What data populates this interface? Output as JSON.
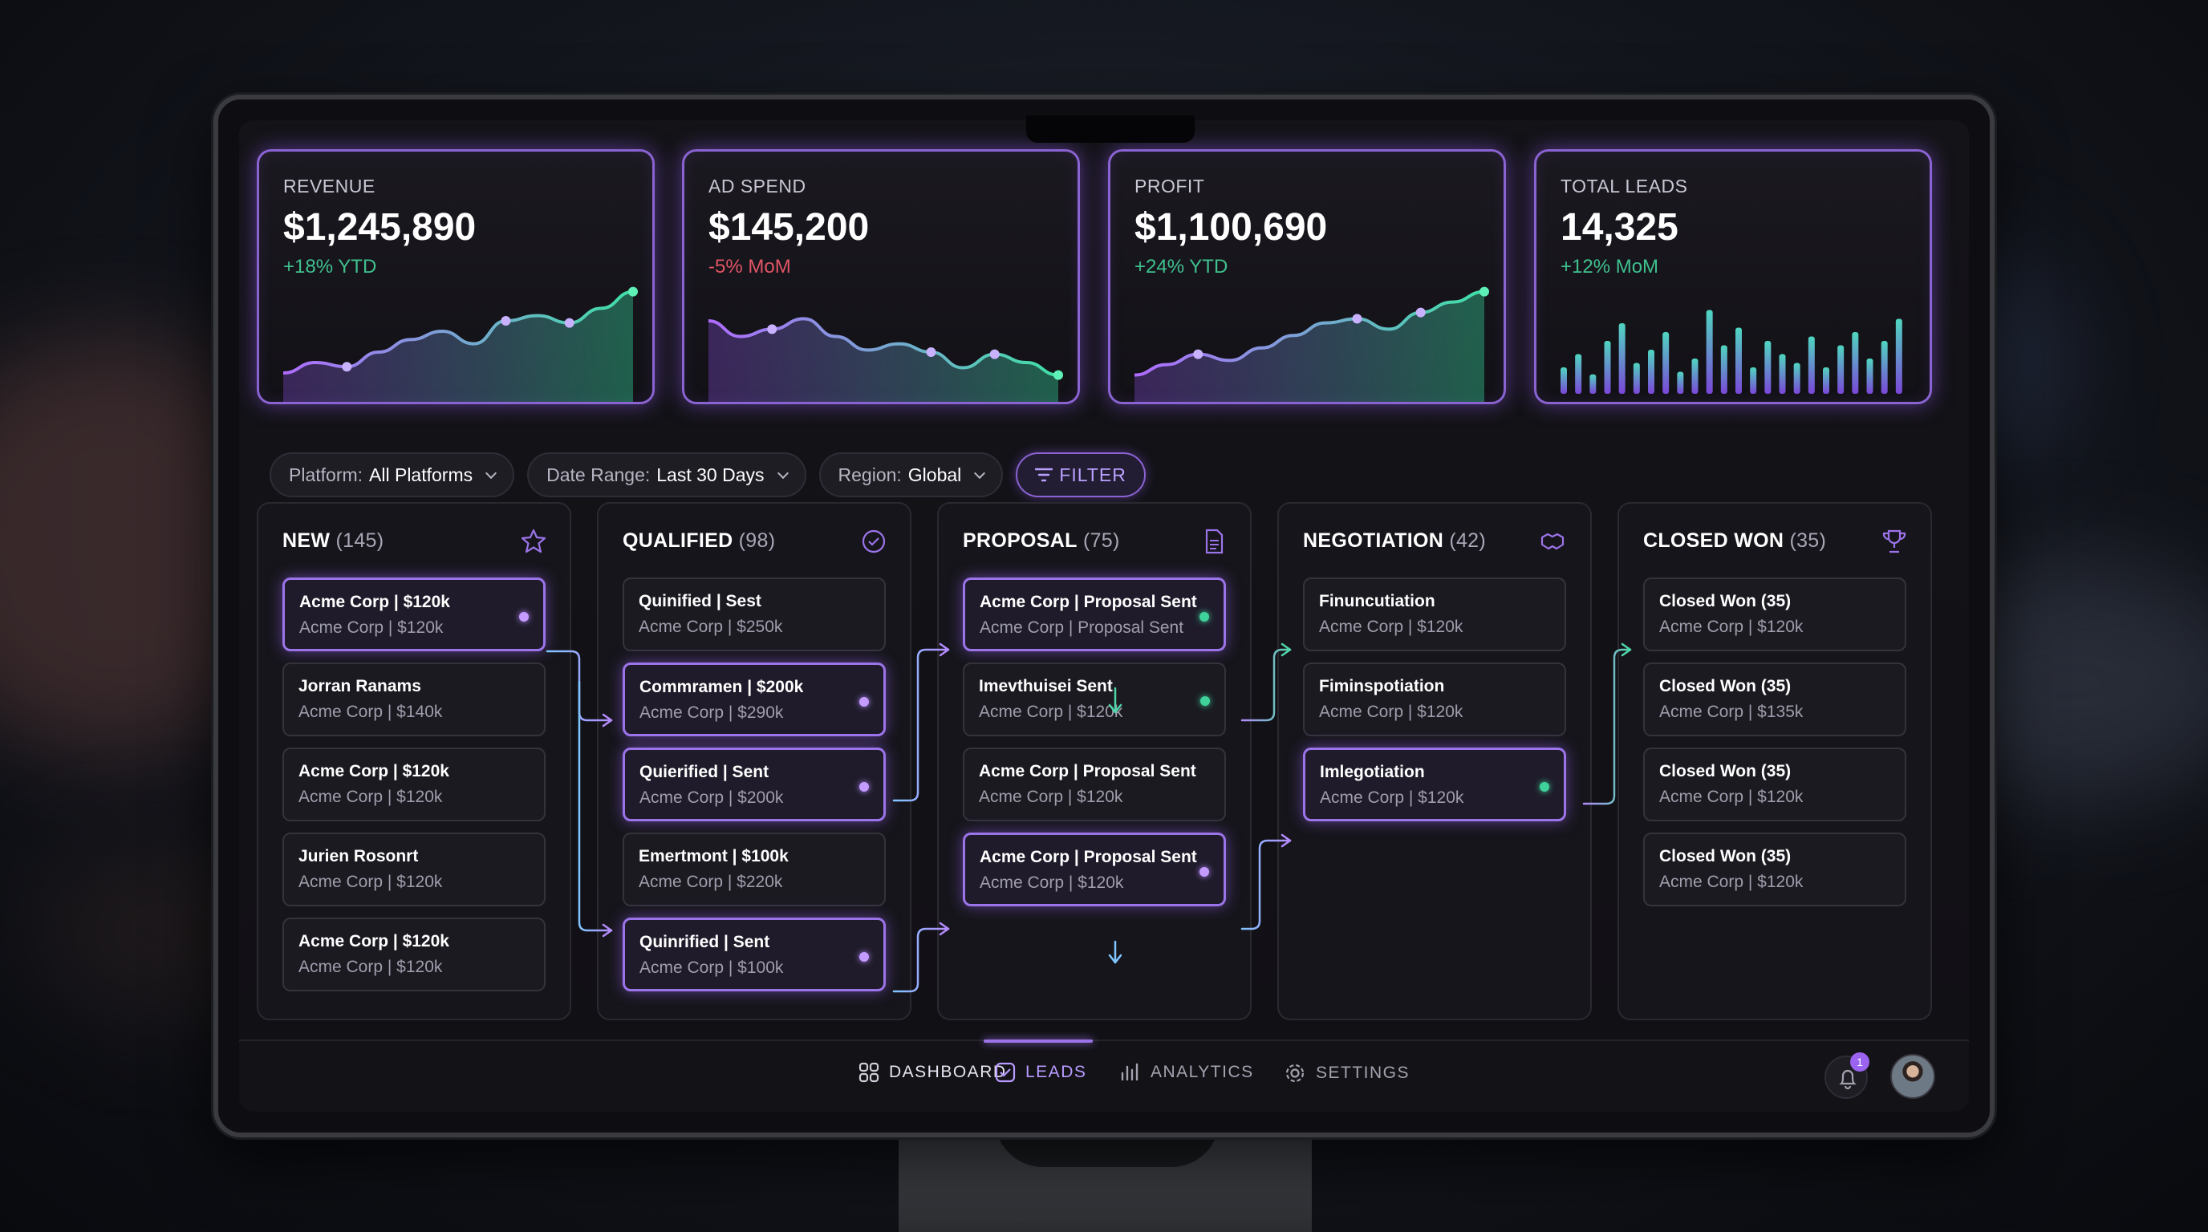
{
  "kpis": [
    {
      "label": "REVENUE",
      "value": "$1,245,890",
      "delta": "+18% YTD",
      "trend": "up",
      "sparkline": [
        20,
        30,
        26,
        40,
        52,
        60,
        48,
        70,
        75,
        68,
        82,
        98
      ]
    },
    {
      "label": "AD SPEND",
      "value": "$145,200",
      "delta": "-5% MoM",
      "trend": "down",
      "sparkline": [
        70,
        55,
        62,
        72,
        55,
        42,
        48,
        40,
        25,
        38,
        30,
        18
      ]
    },
    {
      "label": "PROFIT",
      "value": "$1,100,690",
      "delta": "+24% YTD",
      "trend": "up",
      "sparkline": [
        18,
        28,
        38,
        32,
        44,
        56,
        68,
        72,
        62,
        78,
        88,
        98
      ]
    },
    {
      "label": "TOTAL LEADS",
      "value": "14,325",
      "delta": "+12% MoM",
      "trend": "up",
      "bars": [
        30,
        45,
        22,
        60,
        80,
        35,
        50,
        70,
        25,
        40,
        95,
        55,
        75,
        30,
        60,
        45,
        35,
        65,
        30,
        55,
        70,
        40,
        60,
        85
      ]
    }
  ],
  "filters": {
    "platform_label": "Platform:",
    "platform_value": "All Platforms",
    "date_label": "Date Range:",
    "date_value": "Last 30 Days",
    "region_label": "Region:",
    "region_value": "Global",
    "filter_button": "FILTER"
  },
  "columns": [
    {
      "title": "NEW",
      "count": "(145)",
      "icon": "star-icon",
      "cards": [
        {
          "title": "Acme Corp | $120k",
          "subtitle": "Acme Corp | $120k",
          "highlight": true,
          "dot": "purple"
        },
        {
          "title": "Jorran Ranams",
          "subtitle": "Acme Corp | $140k",
          "highlight": false,
          "dot": ""
        },
        {
          "title": "Acme Corp | $120k",
          "subtitle": "Acme Corp | $120k",
          "highlight": false,
          "dot": ""
        },
        {
          "title": "Jurien Rosonrt",
          "subtitle": "Acme Corp | $120k",
          "highlight": false,
          "dot": ""
        },
        {
          "title": "Acme Corp | $120k",
          "subtitle": "Acme Corp | $120k",
          "highlight": false,
          "dot": ""
        }
      ]
    },
    {
      "title": "QUALIFIED",
      "count": "(98)",
      "icon": "check-circle-icon",
      "cards": [
        {
          "title": "Quinified | Sest",
          "subtitle": "Acme Corp | $250k",
          "highlight": false,
          "dot": ""
        },
        {
          "title": "Commramen | $200k",
          "subtitle": "Acme Corp | $290k",
          "highlight": true,
          "dot": "purple"
        },
        {
          "title": "Quierified | Sent",
          "subtitle": "Acme Corp | $200k",
          "highlight": true,
          "dot": "purple"
        },
        {
          "title": "Emertmont | $100k",
          "subtitle": "Acme Corp | $220k",
          "highlight": false,
          "dot": ""
        },
        {
          "title": "Quinrified | Sent",
          "subtitle": "Acme Corp | $100k",
          "highlight": true,
          "dot": "purple"
        }
      ]
    },
    {
      "title": "PROPOSAL",
      "count": "(75)",
      "icon": "document-icon",
      "cards": [
        {
          "title": "Acme Corp | Proposal Sent",
          "subtitle": "Acme Corp | Proposal Sent",
          "highlight": true,
          "dot": "green"
        },
        {
          "title": "Imevthuisei Sent",
          "subtitle": "Acme Corp | $120k",
          "highlight": false,
          "dot": "green"
        },
        {
          "title": "Acme Corp | Proposal Sent",
          "subtitle": "Acme Corp | $120k",
          "highlight": false,
          "dot": ""
        },
        {
          "title": "Acme Corp | Proposal Sent",
          "subtitle": "Acme Corp | $120k",
          "highlight": true,
          "dot": "purple"
        }
      ]
    },
    {
      "title": "NEGOTIATION",
      "count": "(42)",
      "icon": "handshake-icon",
      "cards": [
        {
          "title": "Finuncutiation",
          "subtitle": "Acme Corp | $120k",
          "highlight": false,
          "dot": ""
        },
        {
          "title": "Fiminspotiation",
          "subtitle": "Acme Corp | $120k",
          "highlight": false,
          "dot": ""
        },
        {
          "title": "Imlegotiation",
          "subtitle": "Acme Corp | $120k",
          "highlight": true,
          "dot": "green"
        }
      ]
    },
    {
      "title": "CLOSED WON",
      "count": "(35)",
      "icon": "trophy-icon",
      "cards": [
        {
          "title": "Closed Won (35)",
          "subtitle": "Acme Corp | $120k",
          "highlight": false,
          "dot": ""
        },
        {
          "title": "Closed Won (35)",
          "subtitle": "Acme Corp | $135k",
          "highlight": false,
          "dot": ""
        },
        {
          "title": "Closed Won (35)",
          "subtitle": "Acme Corp | $120k",
          "highlight": false,
          "dot": ""
        },
        {
          "title": "Closed Won (35)",
          "subtitle": "Acme Corp | $120k",
          "highlight": false,
          "dot": ""
        }
      ]
    }
  ],
  "nav": {
    "dashboard": "DASHBOARD",
    "leads": "LEADS",
    "analytics": "ANALYTICS",
    "settings": "SETTINGS",
    "notifications_count": "1"
  },
  "colors": {
    "accent": "#9c74ea",
    "positive": "#3fc08e",
    "negative": "#e05564"
  }
}
